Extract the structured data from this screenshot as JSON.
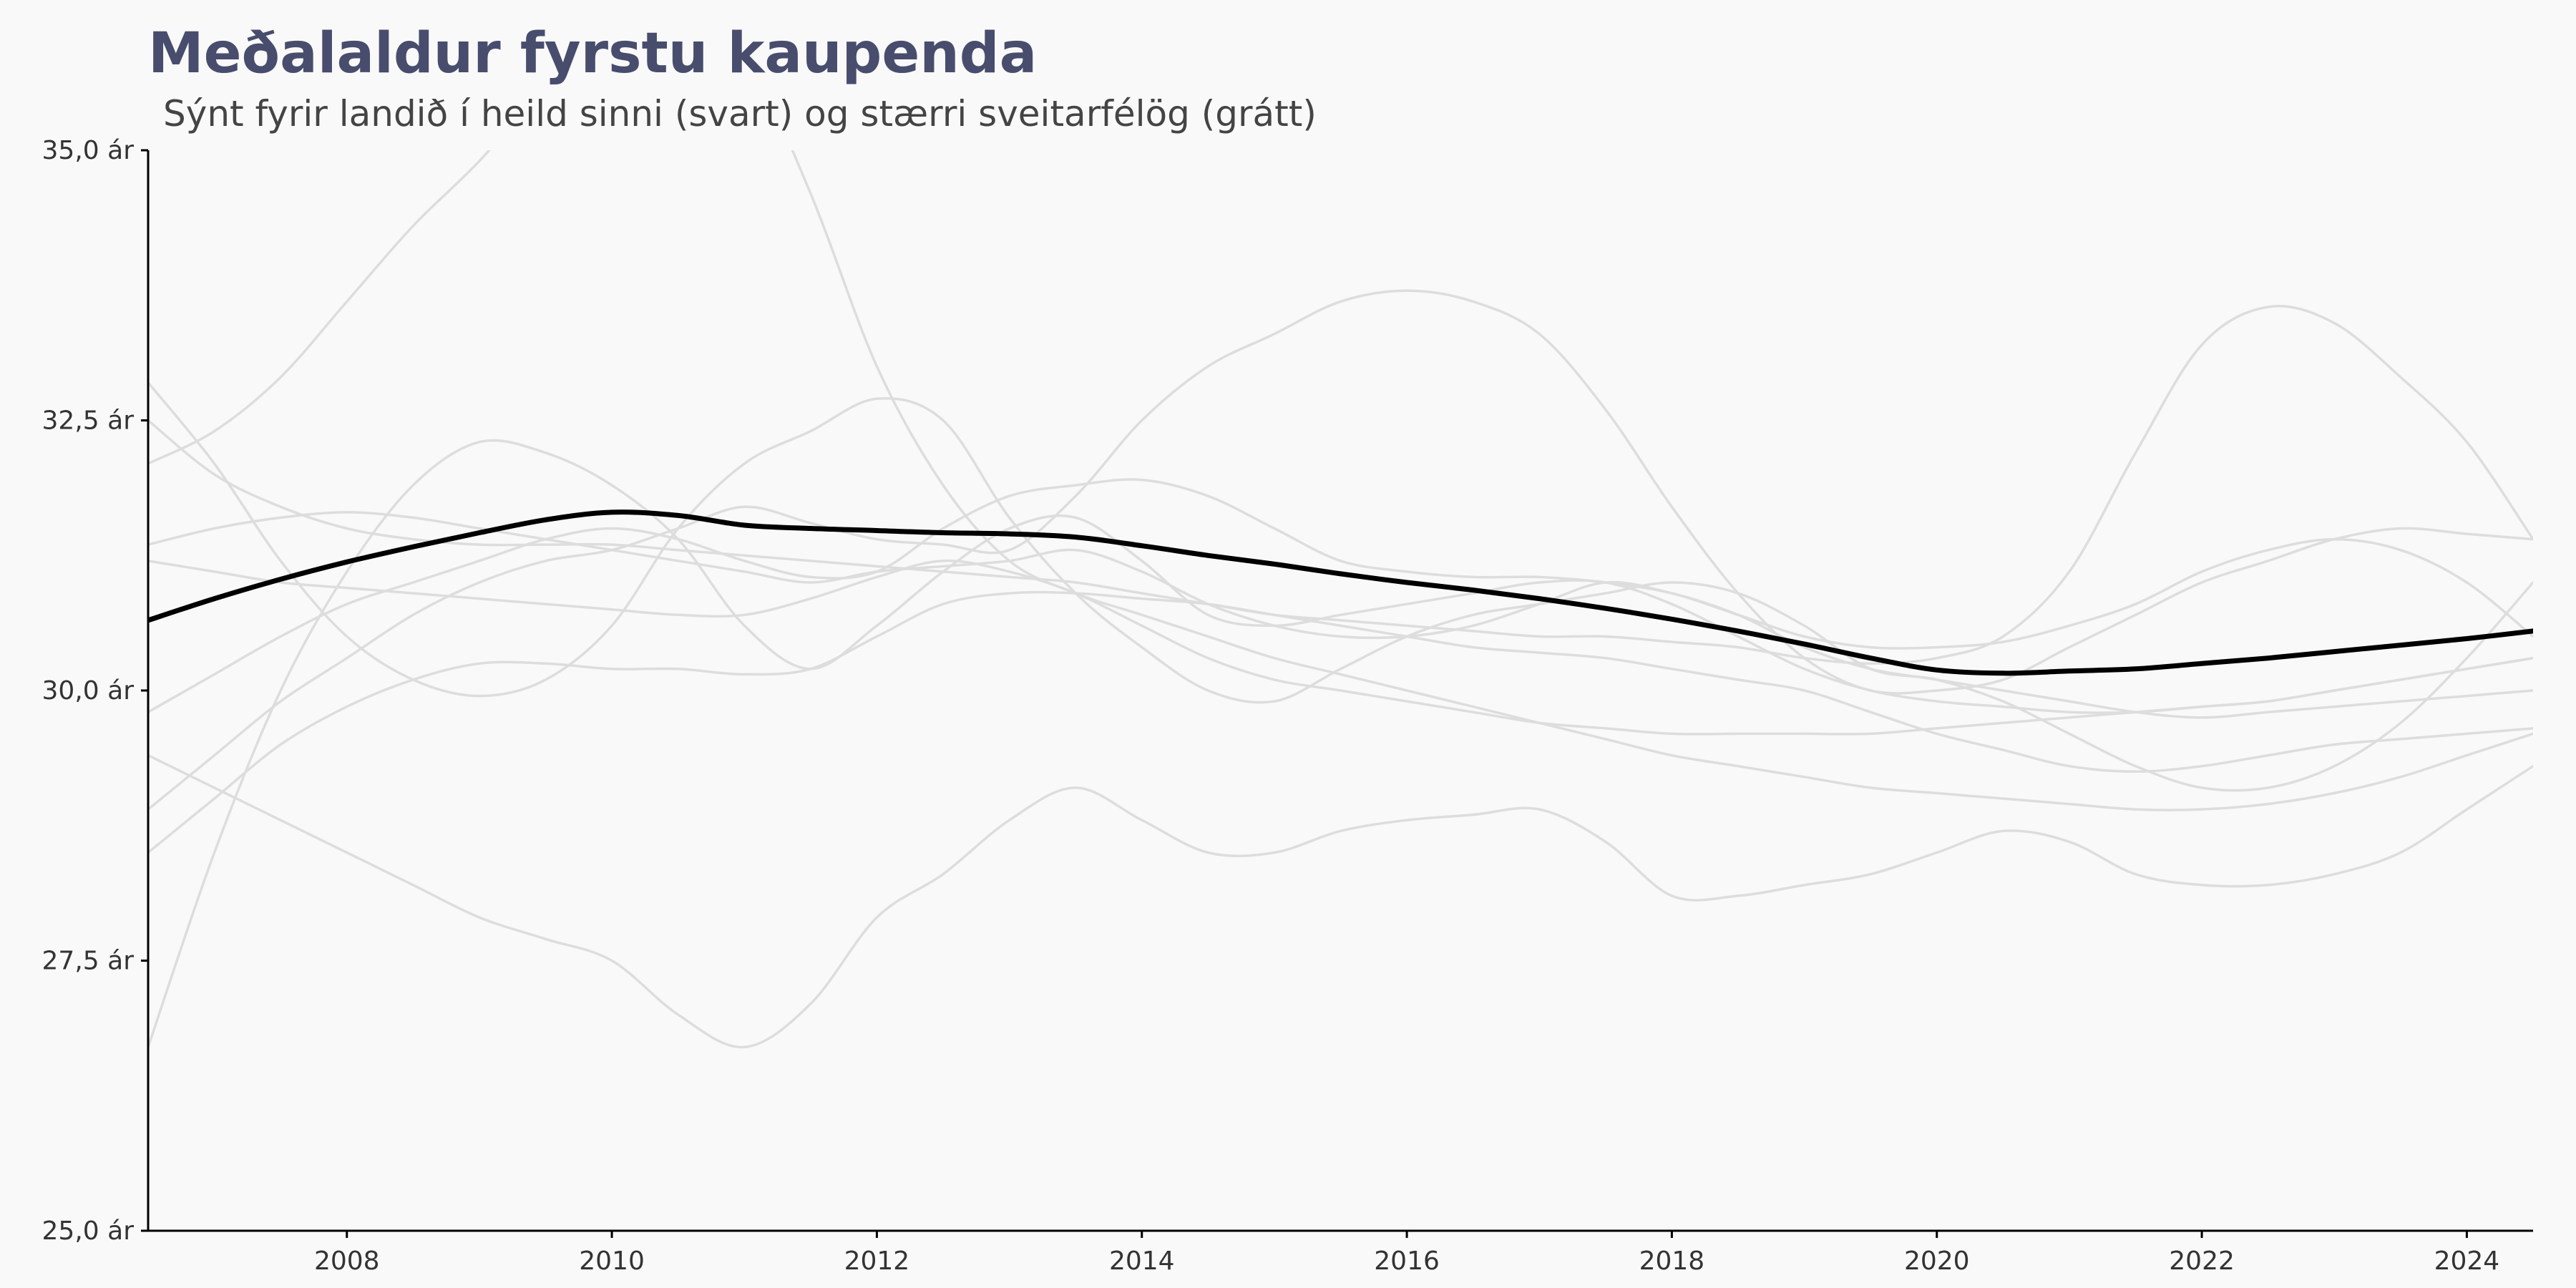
{
  "chart_data": {
    "type": "line",
    "title": "Meðalaldur fyrstu kaupenda",
    "subtitle": "Sýnt fyrir landið í heild sinni (svart) og stærri sveitarfélög (grátt)",
    "xlabel": "",
    "ylabel": "",
    "xlim": [
      2006.5,
      2024.5
    ],
    "ylim": [
      25,
      35
    ],
    "x_ticks": [
      2008,
      2010,
      2012,
      2014,
      2016,
      2018,
      2020,
      2022,
      2024
    ],
    "x_tick_labels": [
      "2008",
      "2010",
      "2012",
      "2014",
      "2016",
      "2018",
      "2020",
      "2022",
      "2024"
    ],
    "y_ticks": [
      25,
      27.5,
      30,
      32.5,
      35
    ],
    "y_tick_labels": [
      "25,0 ár",
      "27,5 ár",
      "30,0 ár",
      "32,5 ár",
      "35,0 ár"
    ],
    "grid": false,
    "legend": "none",
    "x": [
      2006.5,
      2007,
      2007.5,
      2008,
      2008.5,
      2009,
      2009.5,
      2010,
      2010.5,
      2011,
      2011.5,
      2012,
      2012.5,
      2013,
      2013.5,
      2014,
      2014.5,
      2015,
      2015.5,
      2016,
      2016.5,
      2017,
      2017.5,
      2018,
      2018.5,
      2019,
      2019.5,
      2020,
      2020.5,
      2021,
      2021.5,
      2022,
      2022.5,
      2023,
      2023.5,
      2024,
      2024.5
    ],
    "series": [
      {
        "color": "#000000",
        "highlight": true,
        "values": [
          30.65,
          30.85,
          31.03,
          31.19,
          31.33,
          31.46,
          31.58,
          31.65,
          31.62,
          31.53,
          31.5,
          31.48,
          31.46,
          31.45,
          31.42,
          31.34,
          31.25,
          31.17,
          31.08,
          31.0,
          30.93,
          30.85,
          30.76,
          30.66,
          30.55,
          30.43,
          30.3,
          30.19,
          30.16,
          30.18,
          30.2,
          30.25,
          30.3,
          30.36,
          30.42,
          30.48,
          30.55
        ]
      },
      {
        "color": "#dddddd",
        "values": [
          32.1,
          32.4,
          32.9,
          33.6,
          34.3,
          34.9,
          35.6,
          36.2,
          36.4,
          35.9,
          34.6,
          33.0,
          31.9,
          31.2,
          30.9,
          30.7,
          30.5,
          30.3,
          30.15,
          30.0,
          29.85,
          29.7,
          29.55,
          29.4,
          29.3,
          29.2,
          29.1,
          29.05,
          29.0,
          28.95,
          28.9,
          28.9,
          28.95,
          29.05,
          29.2,
          29.4,
          29.6
        ]
      },
      {
        "color": "#dddddd",
        "values": [
          26.7,
          28.5,
          30.0,
          31.1,
          31.9,
          32.3,
          32.2,
          31.9,
          31.4,
          30.6,
          30.2,
          30.6,
          31.1,
          31.5,
          31.6,
          31.2,
          30.7,
          30.6,
          30.7,
          30.8,
          30.9,
          31.0,
          31.0,
          30.8,
          30.5,
          30.2,
          30.0,
          29.9,
          29.85,
          29.8,
          29.8,
          29.85,
          29.9,
          30.0,
          30.1,
          30.2,
          30.3
        ]
      },
      {
        "color": "#dddddd",
        "values": [
          32.85,
          32.1,
          31.2,
          30.5,
          30.1,
          29.95,
          30.1,
          30.6,
          31.5,
          32.1,
          32.4,
          32.7,
          32.5,
          31.6,
          30.9,
          30.4,
          30.0,
          29.9,
          30.2,
          30.5,
          30.7,
          30.8,
          30.9,
          31.0,
          30.9,
          30.6,
          30.2,
          30.1,
          29.9,
          29.6,
          29.3,
          29.1,
          29.1,
          29.3,
          29.7,
          30.3,
          31.0
        ]
      },
      {
        "color": "#dddddd",
        "values": [
          29.4,
          29.1,
          28.8,
          28.5,
          28.2,
          27.9,
          27.7,
          27.5,
          27.0,
          26.7,
          27.1,
          27.9,
          28.3,
          28.8,
          29.1,
          28.8,
          28.5,
          28.5,
          28.7,
          28.8,
          28.85,
          28.9,
          28.6,
          28.1,
          28.1,
          28.2,
          28.3,
          28.5,
          28.7,
          28.6,
          28.3,
          28.2,
          28.2,
          28.3,
          28.5,
          28.9,
          29.3
        ]
      },
      {
        "color": "#dddddd",
        "values": [
          28.5,
          29.0,
          29.5,
          29.85,
          30.1,
          30.25,
          30.25,
          30.2,
          30.2,
          30.15,
          30.2,
          30.5,
          30.8,
          30.9,
          30.9,
          30.85,
          30.8,
          30.7,
          30.6,
          30.5,
          30.4,
          30.35,
          30.3,
          30.2,
          30.1,
          30.0,
          29.8,
          29.6,
          29.45,
          29.3,
          29.25,
          29.3,
          29.4,
          29.5,
          29.55,
          29.6,
          29.65
        ]
      },
      {
        "color": "#dddddd",
        "values": [
          29.8,
          30.15,
          30.5,
          30.8,
          31.0,
          31.2,
          31.4,
          31.5,
          31.4,
          31.2,
          31.05,
          31.1,
          31.5,
          31.8,
          31.9,
          31.95,
          31.8,
          31.5,
          31.2,
          31.1,
          31.05,
          31.05,
          31.0,
          30.9,
          30.7,
          30.4,
          30.2,
          30.1,
          30.0,
          29.9,
          29.8,
          29.75,
          29.8,
          29.85,
          29.9,
          29.95,
          30.0
        ]
      },
      {
        "color": "#dddddd",
        "values": [
          31.35,
          31.5,
          31.6,
          31.65,
          31.6,
          31.5,
          31.4,
          31.3,
          31.2,
          31.1,
          31.0,
          31.1,
          31.15,
          31.2,
          31.3,
          31.1,
          30.8,
          30.6,
          30.5,
          30.5,
          30.6,
          30.8,
          31.0,
          30.9,
          30.7,
          30.5,
          30.4,
          30.4,
          30.45,
          30.6,
          30.8,
          31.1,
          31.3,
          31.4,
          31.3,
          31.0,
          30.5
        ]
      },
      {
        "color": "#dddddd",
        "values": [
          31.2,
          31.1,
          31.0,
          30.95,
          30.9,
          30.85,
          30.8,
          30.75,
          30.7,
          30.7,
          30.85,
          31.05,
          31.2,
          31.1,
          30.9,
          30.6,
          30.3,
          30.1,
          30.0,
          29.9,
          29.8,
          29.7,
          29.65,
          29.6,
          29.6,
          29.6,
          29.6,
          29.65,
          29.7,
          29.75,
          29.8,
          29.85,
          29.9,
          30.0,
          30.1,
          30.2,
          30.3
        ]
      },
      {
        "color": "#dddddd",
        "values": [
          28.9,
          29.4,
          29.9,
          30.3,
          30.7,
          31.0,
          31.2,
          31.3,
          31.5,
          31.7,
          31.55,
          31.4,
          31.35,
          31.3,
          31.8,
          32.5,
          33.0,
          33.3,
          33.6,
          33.7,
          33.6,
          33.3,
          32.6,
          31.7,
          30.9,
          30.3,
          30.0,
          30.0,
          30.1,
          30.4,
          30.7,
          31.0,
          31.2,
          31.4,
          31.5,
          31.45,
          31.4
        ]
      },
      {
        "color": "#dddddd",
        "values": [
          32.5,
          32.0,
          31.7,
          31.5,
          31.4,
          31.35,
          31.35,
          31.35,
          31.3,
          31.25,
          31.2,
          31.15,
          31.1,
          31.05,
          31.0,
          30.9,
          30.8,
          30.7,
          30.65,
          30.6,
          30.55,
          30.5,
          30.5,
          30.45,
          30.4,
          30.3,
          30.25,
          30.3,
          30.5,
          31.1,
          32.2,
          33.2,
          33.55,
          33.4,
          32.9,
          32.3,
          31.4
        ]
      }
    ]
  }
}
